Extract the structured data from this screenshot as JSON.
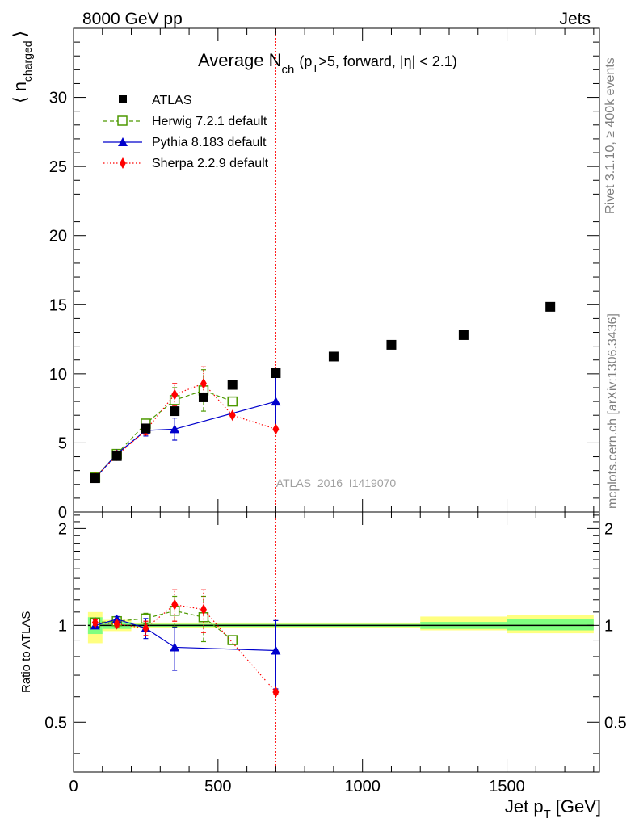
{
  "header": {
    "left": "8000 GeV pp",
    "right": "Jets"
  },
  "side_labels": {
    "rivet": "Rivet 3.1.10, ≥ 400k events",
    "mcplots": "mcplots.cern.ch [arXiv:1306.3436]"
  },
  "watermark": "ATLAS_2016_I1419070",
  "chart_data": [
    {
      "type": "scatter",
      "panel": "main",
      "title": {
        "main": "Average N",
        "sub": "ch",
        "rest_a": "(p",
        "rest_sub": "T",
        "rest_b": ">5, forward, |η| < 2.1)"
      },
      "ylabel": {
        "open": "⟨ n",
        "sub": "charged",
        "close": "⟩"
      },
      "xlim": [
        0,
        1820
      ],
      "ylim": [
        0,
        35
      ],
      "yticks": [
        0,
        5,
        10,
        15,
        20,
        25,
        30
      ],
      "ytick_labels": [
        "0",
        "5",
        "10",
        "15",
        "20",
        "25",
        "30"
      ],
      "xticks": [
        0,
        500,
        1000,
        1500
      ],
      "vline_x": 700,
      "series": [
        {
          "name": "ATLAS",
          "color": "#000000",
          "marker": "square-filled",
          "line": "none",
          "x": [
            75,
            150,
            250,
            350,
            450,
            550,
            700,
            900,
            1100,
            1350,
            1650
          ],
          "y": [
            2.45,
            4.05,
            6.05,
            7.3,
            8.3,
            9.2,
            10.05,
            11.25,
            12.1,
            12.8,
            14.85
          ]
        },
        {
          "name": "Herwig 7.2.1 default",
          "color": "#4d9900",
          "marker": "square-open",
          "line": "dashed",
          "x": [
            75,
            150,
            250,
            350,
            450,
            550
          ],
          "y": [
            2.5,
            4.2,
            6.4,
            8.1,
            8.8,
            8.0
          ],
          "err": [
            0.1,
            0.15,
            0.3,
            0.9,
            1.5,
            0.1
          ]
        },
        {
          "name": "Pythia 8.183 default",
          "color": "#0000cc",
          "marker": "triangle",
          "line": "solid",
          "x": [
            75,
            150,
            250,
            350,
            700
          ],
          "y": [
            2.45,
            4.2,
            5.9,
            6.0,
            8.0
          ],
          "err": [
            0.1,
            0.15,
            0.4,
            0.8,
            2.0
          ]
        },
        {
          "name": "Sherpa 2.2.9 default",
          "color": "#ff0000",
          "marker": "diamond",
          "line": "dotted",
          "x": [
            75,
            150,
            250,
            350,
            450,
            550,
            700
          ],
          "y": [
            2.5,
            4.1,
            5.9,
            8.5,
            9.3,
            7.0,
            6.0
          ],
          "err": [
            0.1,
            0.15,
            0.3,
            0.8,
            1.2,
            0.1,
            0.1
          ]
        }
      ]
    },
    {
      "type": "scatter",
      "panel": "ratio",
      "ylabel": "Ratio to ATLAS",
      "xlabel": {
        "main": "Jet p",
        "sub": "T",
        "unit": "[GeV]"
      },
      "xlim": [
        0,
        1820
      ],
      "ylim": [
        0.35,
        2.25
      ],
      "yticks": [
        0.5,
        1,
        2
      ],
      "ytick_labels": [
        "0.5",
        "1",
        "2"
      ],
      "xticks": [
        0,
        500,
        1000,
        1500
      ],
      "xtick_labels": [
        "0",
        "500",
        "1000",
        "1500"
      ],
      "vline_x": 700,
      "reference": 1,
      "bands": [
        {
          "x0": 50,
          "x1": 100,
          "y1lo": 0.94,
          "y1hi": 1.06,
          "y2lo": 0.88,
          "y2hi": 1.1
        },
        {
          "x0": 100,
          "x1": 200,
          "y1lo": 0.975,
          "y1hi": 1.025,
          "y2lo": 0.96,
          "y2hi": 1.04
        },
        {
          "x0": 200,
          "x1": 1200,
          "y1lo": 0.99,
          "y1hi": 1.01,
          "y2lo": 0.98,
          "y2hi": 1.02
        },
        {
          "x0": 1200,
          "x1": 1500,
          "y1lo": 0.975,
          "y1hi": 1.025,
          "y2lo": 0.965,
          "y2hi": 1.065
        },
        {
          "x0": 1500,
          "x1": 1800,
          "y1lo": 0.965,
          "y1hi": 1.045,
          "y2lo": 0.945,
          "y2hi": 1.075
        }
      ],
      "series": [
        {
          "name": "Herwig 7.2.1 default",
          "color": "#4d9900",
          "marker": "square-open",
          "line": "dashed",
          "x": [
            75,
            150,
            250,
            350,
            450,
            550
          ],
          "y": [
            1.02,
            1.03,
            1.05,
            1.11,
            1.06,
            0.9
          ],
          "err": [
            0.02,
            0.02,
            0.04,
            0.12,
            0.17,
            0.01
          ]
        },
        {
          "name": "Pythia 8.183 default",
          "color": "#0000cc",
          "marker": "triangle",
          "line": "solid",
          "x": [
            75,
            150,
            250,
            350,
            700
          ],
          "y": [
            1.0,
            1.045,
            0.98,
            0.855,
            0.835
          ],
          "err": [
            0.02,
            0.02,
            0.07,
            0.13,
            0.2
          ]
        },
        {
          "name": "Sherpa 2.2.9 default",
          "color": "#ff0000",
          "marker": "diamond",
          "line": "dotted",
          "x": [
            75,
            150,
            250,
            350,
            450,
            700
          ],
          "y": [
            1.02,
            1.01,
            0.98,
            1.16,
            1.12,
            0.62
          ],
          "err": [
            0.02,
            0.02,
            0.05,
            0.13,
            0.17,
            0.01
          ]
        }
      ]
    }
  ]
}
